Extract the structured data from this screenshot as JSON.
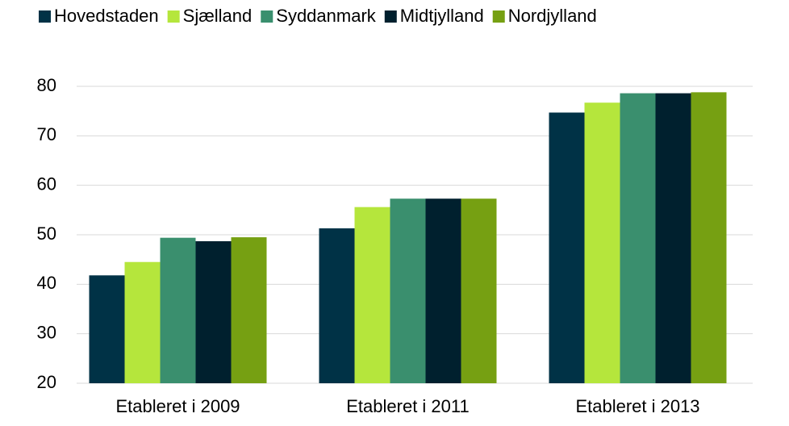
{
  "chart_data": {
    "type": "bar",
    "categories": [
      "Etableret i 2009",
      "Etableret i 2011",
      "Etableret i 2013"
    ],
    "series": [
      {
        "name": "Hovedstaden",
        "color": "#003246",
        "values": [
          41.8,
          51.3,
          74.7
        ]
      },
      {
        "name": "Sjælland",
        "color": "#b5e63c",
        "values": [
          44.5,
          55.6,
          76.7
        ]
      },
      {
        "name": "Syddanmark",
        "color": "#3a8f6e",
        "values": [
          49.4,
          57.3,
          78.6
        ]
      },
      {
        "name": "Midtjylland",
        "color": "#00202e",
        "values": [
          48.7,
          57.3,
          78.6
        ]
      },
      {
        "name": "Nordjylland",
        "color": "#76a012",
        "values": [
          49.5,
          57.3,
          78.8
        ]
      }
    ],
    "ylim": [
      20,
      80
    ],
    "yticks": [
      20,
      30,
      40,
      50,
      60,
      70,
      80
    ],
    "grid": true,
    "legend": "top"
  }
}
